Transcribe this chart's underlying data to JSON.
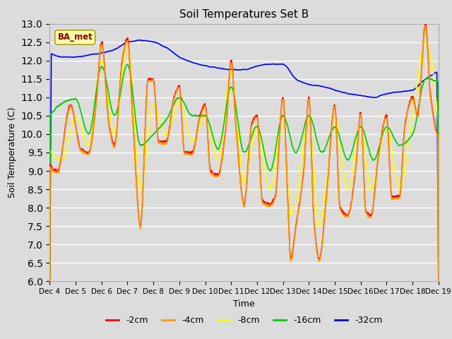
{
  "title": "Soil Temperatures Set B",
  "xlabel": "Time",
  "ylabel": "Soil Temperature (C)",
  "ylim": [
    6.0,
    13.0
  ],
  "yticks": [
    6.0,
    6.5,
    7.0,
    7.5,
    8.0,
    8.5,
    9.0,
    9.5,
    10.0,
    10.5,
    11.0,
    11.5,
    12.0,
    12.5,
    13.0
  ],
  "xtick_labels": [
    "Dec 4",
    "Dec 5",
    "Dec 6",
    "Dec 7",
    "Dec 8",
    "Dec 9",
    "Dec 10",
    "Dec 11",
    "Dec 12",
    "Dec 13",
    "Dec 14",
    "Dec 15",
    "Dec 16",
    "Dec 17",
    "Dec 18",
    "Dec 19"
  ],
  "legend_labels": [
    "-2cm",
    "-4cm",
    "-8cm",
    "-16cm",
    "-32cm"
  ],
  "legend_colors": [
    "#ff0000",
    "#ff9900",
    "#ffff00",
    "#00cc00",
    "#0000ff"
  ],
  "background_color": "#dcdcdc",
  "plot_bg_color": "#dcdcdc",
  "label_box_color": "#ffffaa",
  "label_box_text": "BA_met",
  "label_box_text_color": "#880000",
  "n_points": 3600,
  "days": 15
}
